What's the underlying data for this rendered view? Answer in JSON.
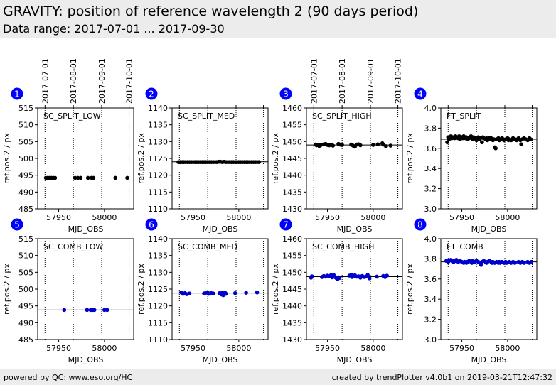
{
  "header": {
    "title": "GRAVITY: position of reference wavelength 2 (90 days period)",
    "subtitle": "Data range: 2017-07-01 ... 2017-09-30"
  },
  "footer": {
    "left": "powered by QC: www.eso.org/HC",
    "right": "created by trendPlotter v4.0b1 on 2019-03-21T12:47:32"
  },
  "date_axis": {
    "labels": [
      "2017-07-01",
      "2017-08-01",
      "2017-09-01",
      "2017-10-01"
    ],
    "mjd": [
      57935,
      57966,
      57997,
      58027
    ]
  },
  "colors": {
    "marker_black": "#000000",
    "marker_blue": "#0000cc",
    "badge": "#0000ff"
  },
  "chart_data": [
    {
      "type": "scatter",
      "badge": "1",
      "label": "SC_SPLIT_LOW",
      "xlabel": "MJD_OBS",
      "ylabel": "ref.pos.2 / px",
      "xlim": [
        57927,
        58032
      ],
      "ylim": [
        485,
        515
      ],
      "yticks": [
        485,
        490,
        495,
        500,
        505,
        510,
        515
      ],
      "xticks": [
        57950,
        58000
      ],
      "refline": 494.2,
      "color": "black",
      "points": [
        [
          57936,
          494.2
        ],
        [
          57938,
          494.2
        ],
        [
          57940,
          494.2
        ],
        [
          57942,
          494.2
        ],
        [
          57944,
          494.2
        ],
        [
          57946,
          494.2
        ],
        [
          57968,
          494.2
        ],
        [
          57971,
          494.2
        ],
        [
          57974,
          494.2
        ],
        [
          57982,
          494.2
        ],
        [
          57986,
          494.2
        ],
        [
          57988,
          494.2
        ],
        [
          58012,
          494.2
        ],
        [
          58025,
          494.2
        ]
      ]
    },
    {
      "type": "scatter",
      "badge": "2",
      "label": "SC_SPLIT_MED",
      "xlabel": "MJD_OBS",
      "ylabel": "ref.pos.2 / px",
      "xlim": [
        57927,
        58032
      ],
      "ylim": [
        1110,
        1140
      ],
      "yticks": [
        1110,
        1115,
        1120,
        1125,
        1130,
        1135,
        1140
      ],
      "xticks": [
        57950,
        58000
      ],
      "refline": 1124.0,
      "color": "black",
      "points": [
        [
          57934,
          1123.9
        ],
        [
          57936,
          1123.9
        ],
        [
          57938,
          1123.9
        ],
        [
          57940,
          1123.9
        ],
        [
          57942,
          1123.9
        ],
        [
          57944,
          1123.9
        ],
        [
          57946,
          1123.9
        ],
        [
          57948,
          1123.9
        ],
        [
          57950,
          1123.9
        ],
        [
          57952,
          1123.9
        ],
        [
          57954,
          1123.9
        ],
        [
          57956,
          1123.9
        ],
        [
          57958,
          1123.9
        ],
        [
          57960,
          1123.9
        ],
        [
          57962,
          1123.9
        ],
        [
          57964,
          1123.9
        ],
        [
          57966,
          1123.9
        ],
        [
          57968,
          1123.9
        ],
        [
          57970,
          1123.9
        ],
        [
          57972,
          1123.9
        ],
        [
          57974,
          1123.9
        ],
        [
          57976,
          1123.9
        ],
        [
          57978,
          1124.0
        ],
        [
          57980,
          1124.0
        ],
        [
          57982,
          1123.9
        ],
        [
          57984,
          1124.0
        ],
        [
          57986,
          1123.9
        ],
        [
          57988,
          1123.9
        ],
        [
          57990,
          1123.9
        ],
        [
          57992,
          1123.9
        ],
        [
          57994,
          1123.9
        ],
        [
          57996,
          1123.9
        ],
        [
          57998,
          1123.9
        ],
        [
          58000,
          1123.9
        ],
        [
          58002,
          1123.9
        ],
        [
          58004,
          1123.9
        ],
        [
          58006,
          1123.9
        ],
        [
          58008,
          1123.9
        ],
        [
          58010,
          1123.9
        ],
        [
          58012,
          1123.9
        ],
        [
          58014,
          1123.9
        ],
        [
          58016,
          1123.9
        ],
        [
          58018,
          1123.9
        ],
        [
          58020,
          1123.9
        ],
        [
          58022,
          1123.9
        ]
      ]
    },
    {
      "type": "scatter",
      "badge": "3",
      "label": "SC_SPLIT_HIGH",
      "xlabel": "MJD_OBS",
      "ylabel": "ref.pos.2 / px",
      "xlim": [
        57927,
        58032
      ],
      "ylim": [
        1430,
        1460
      ],
      "yticks": [
        1430,
        1435,
        1440,
        1445,
        1450,
        1455,
        1460
      ],
      "xticks": [
        57950,
        58000
      ],
      "refline": 1449.0,
      "color": "black",
      "points": [
        [
          57937,
          1449.1
        ],
        [
          57938,
          1448.9
        ],
        [
          57940,
          1449.0
        ],
        [
          57941,
          1448.7
        ],
        [
          57943,
          1449.0
        ],
        [
          57946,
          1449.2
        ],
        [
          57948,
          1449.3
        ],
        [
          57950,
          1449.0
        ],
        [
          57952,
          1448.9
        ],
        [
          57954,
          1449.1
        ],
        [
          57956,
          1448.8
        ],
        [
          57962,
          1449.3
        ],
        [
          57964,
          1449.1
        ],
        [
          57966,
          1449.0
        ],
        [
          57976,
          1449.1
        ],
        [
          57978,
          1448.8
        ],
        [
          57980,
          1448.5
        ],
        [
          57982,
          1449.1
        ],
        [
          57984,
          1449.2
        ],
        [
          57986,
          1448.9
        ],
        [
          58000,
          1449.0
        ],
        [
          58005,
          1449.2
        ],
        [
          58010,
          1449.5
        ],
        [
          58011,
          1449.1
        ],
        [
          58014,
          1448.6
        ],
        [
          58019,
          1448.8
        ]
      ]
    },
    {
      "type": "scatter",
      "badge": "4",
      "label": "FT_SPLIT",
      "xlabel": "MJD_OBS",
      "ylabel": "ref.pos.2 / px",
      "xlim": [
        57927,
        58032
      ],
      "ylim": [
        3.0,
        4.0
      ],
      "yticks": [
        3.0,
        3.2,
        3.4,
        3.6,
        3.8,
        4.0
      ],
      "xticks": [
        57950,
        58000
      ],
      "refline": 3.69,
      "color": "black",
      "points": [
        [
          57934,
          3.66
        ],
        [
          57935,
          3.71
        ],
        [
          57936,
          3.69
        ],
        [
          57938,
          3.72
        ],
        [
          57939,
          3.7
        ],
        [
          57940,
          3.71
        ],
        [
          57942,
          3.7
        ],
        [
          57943,
          3.72
        ],
        [
          57944,
          3.71
        ],
        [
          57946,
          3.7
        ],
        [
          57947,
          3.72
        ],
        [
          57948,
          3.69
        ],
        [
          57950,
          3.71
        ],
        [
          57951,
          3.7
        ],
        [
          57952,
          3.72
        ],
        [
          57954,
          3.7
        ],
        [
          57955,
          3.71
        ],
        [
          57956,
          3.69
        ],
        [
          57958,
          3.7
        ],
        [
          57959,
          3.71
        ],
        [
          57960,
          3.72
        ],
        [
          57962,
          3.69
        ],
        [
          57963,
          3.71
        ],
        [
          57964,
          3.7
        ],
        [
          57966,
          3.68
        ],
        [
          57968,
          3.71
        ],
        [
          57969,
          3.69
        ],
        [
          57970,
          3.7
        ],
        [
          57972,
          3.66
        ],
        [
          57973,
          3.71
        ],
        [
          57974,
          3.7
        ],
        [
          57976,
          3.69
        ],
        [
          57977,
          3.7
        ],
        [
          57978,
          3.68
        ],
        [
          57980,
          3.7
        ],
        [
          57981,
          3.69
        ],
        [
          57982,
          3.7
        ],
        [
          57984,
          3.68
        ],
        [
          57985,
          3.69
        ],
        [
          57986,
          3.61
        ],
        [
          57987,
          3.6
        ],
        [
          57988,
          3.69
        ],
        [
          57990,
          3.7
        ],
        [
          57991,
          3.68
        ],
        [
          57992,
          3.69
        ],
        [
          57994,
          3.7
        ],
        [
          57995,
          3.69
        ],
        [
          57996,
          3.68
        ],
        [
          57998,
          3.69
        ],
        [
          58000,
          3.7
        ],
        [
          58001,
          3.68
        ],
        [
          58002,
          3.69
        ],
        [
          58004,
          3.68
        ],
        [
          58006,
          3.7
        ],
        [
          58008,
          3.69
        ],
        [
          58010,
          3.68
        ],
        [
          58011,
          3.69
        ],
        [
          58012,
          3.7
        ],
        [
          58014,
          3.68
        ],
        [
          58015,
          3.64
        ],
        [
          58016,
          3.69
        ],
        [
          58018,
          3.7
        ],
        [
          58020,
          3.69
        ],
        [
          58022,
          3.68
        ],
        [
          58024,
          3.7
        ],
        [
          58025,
          3.69
        ]
      ]
    },
    {
      "type": "scatter",
      "badge": "5",
      "label": "SC_COMB_LOW",
      "xlabel": "MJD_OBS",
      "ylabel": "ref.pos.2 / px",
      "xlim": [
        57927,
        58032
      ],
      "ylim": [
        485,
        515
      ],
      "yticks": [
        485,
        490,
        495,
        500,
        505,
        510,
        515
      ],
      "xticks": [
        57950,
        58000
      ],
      "refline": 493.8,
      "color": "blue",
      "points": [
        [
          57956,
          493.8
        ],
        [
          57981,
          493.8
        ],
        [
          57985,
          493.8
        ],
        [
          57987,
          493.8
        ],
        [
          57989,
          493.8
        ],
        [
          58000,
          493.8
        ],
        [
          58003,
          493.8
        ]
      ]
    },
    {
      "type": "scatter",
      "badge": "6",
      "label": "SC_COMB_MED",
      "xlabel": "MJD_OBS",
      "ylabel": "ref.pos.2 / px",
      "xlim": [
        57927,
        58032
      ],
      "ylim": [
        1110,
        1140
      ],
      "yticks": [
        1110,
        1115,
        1120,
        1125,
        1130,
        1135,
        1140
      ],
      "xticks": [
        57950,
        58000
      ],
      "refline": 1123.8,
      "color": "blue",
      "points": [
        [
          57937,
          1124.0
        ],
        [
          57939,
          1123.6
        ],
        [
          57941,
          1123.8
        ],
        [
          57943,
          1123.5
        ],
        [
          57946,
          1123.7
        ],
        [
          57962,
          1123.7
        ],
        [
          57964,
          1123.9
        ],
        [
          57966,
          1124.0
        ],
        [
          57967,
          1123.6
        ],
        [
          57970,
          1123.8
        ],
        [
          57972,
          1123.7
        ],
        [
          57979,
          1123.8
        ],
        [
          57981,
          1123.4
        ],
        [
          57982,
          1124.0
        ],
        [
          57983,
          1123.2
        ],
        [
          57985,
          1123.9
        ],
        [
          57986,
          1123.6
        ],
        [
          57996,
          1123.8
        ],
        [
          58008,
          1123.9
        ],
        [
          58020,
          1124.0
        ]
      ]
    },
    {
      "type": "scatter",
      "badge": "7",
      "label": "SC_COMB_HIGH",
      "xlabel": "MJD_OBS",
      "ylabel": "ref.pos.2 / px",
      "xlim": [
        57927,
        58032
      ],
      "ylim": [
        1430,
        1460
      ],
      "yticks": [
        1430,
        1435,
        1440,
        1445,
        1450,
        1455,
        1460
      ],
      "xticks": [
        57950,
        58000
      ],
      "refline": 1448.7,
      "color": "blue",
      "points": [
        [
          57932,
          1448.4
        ],
        [
          57933,
          1448.8
        ],
        [
          57944,
          1448.6
        ],
        [
          57946,
          1448.9
        ],
        [
          57948,
          1448.7
        ],
        [
          57950,
          1449.0
        ],
        [
          57952,
          1448.8
        ],
        [
          57954,
          1449.2
        ],
        [
          57955,
          1448.5
        ],
        [
          57957,
          1449.1
        ],
        [
          57958,
          1448.6
        ],
        [
          57960,
          1448.2
        ],
        [
          57961,
          1448.0
        ],
        [
          57962,
          1448.5
        ],
        [
          57963,
          1448.3
        ],
        [
          57974,
          1449.0
        ],
        [
          57976,
          1449.2
        ],
        [
          57977,
          1448.6
        ],
        [
          57979,
          1448.9
        ],
        [
          57980,
          1449.1
        ],
        [
          57982,
          1448.7
        ],
        [
          57984,
          1448.8
        ],
        [
          57986,
          1448.4
        ],
        [
          57988,
          1448.9
        ],
        [
          57990,
          1448.6
        ],
        [
          57992,
          1448.7
        ],
        [
          57994,
          1449.2
        ],
        [
          57996,
          1448.2
        ],
        [
          58004,
          1448.7
        ],
        [
          58011,
          1448.9
        ],
        [
          58013,
          1448.6
        ],
        [
          58015,
          1449.0
        ]
      ]
    },
    {
      "type": "scatter",
      "badge": "8",
      "label": "FT_COMB",
      "xlabel": "MJD_OBS",
      "ylabel": "ref.pos.2 / px",
      "xlim": [
        57927,
        58032
      ],
      "ylim": [
        3.0,
        4.0
      ],
      "yticks": [
        3.0,
        3.2,
        3.4,
        3.6,
        3.8,
        4.0
      ],
      "xticks": [
        57950,
        58000
      ],
      "refline": 3.77,
      "color": "blue",
      "points": [
        [
          57933,
          3.78
        ],
        [
          57935,
          3.77
        ],
        [
          57936,
          3.78
        ],
        [
          57938,
          3.79
        ],
        [
          57940,
          3.78
        ],
        [
          57941,
          3.77
        ],
        [
          57943,
          3.78
        ],
        [
          57944,
          3.79
        ],
        [
          57946,
          3.77
        ],
        [
          57948,
          3.78
        ],
        [
          57950,
          3.77
        ],
        [
          57952,
          3.76
        ],
        [
          57953,
          3.77
        ],
        [
          57955,
          3.76
        ],
        [
          57956,
          3.77
        ],
        [
          57958,
          3.78
        ],
        [
          57960,
          3.77
        ],
        [
          57961,
          3.76
        ],
        [
          57962,
          3.78
        ],
        [
          57964,
          3.77
        ],
        [
          57966,
          3.78
        ],
        [
          57968,
          3.77
        ],
        [
          57970,
          3.76
        ],
        [
          57971,
          3.74
        ],
        [
          57972,
          3.77
        ],
        [
          57974,
          3.78
        ],
        [
          57976,
          3.77
        ],
        [
          57977,
          3.76
        ],
        [
          57978,
          3.77
        ],
        [
          57980,
          3.78
        ],
        [
          57982,
          3.77
        ],
        [
          57983,
          3.76
        ],
        [
          57984,
          3.77
        ],
        [
          57986,
          3.76
        ],
        [
          57988,
          3.77
        ],
        [
          57990,
          3.76
        ],
        [
          57991,
          3.77
        ],
        [
          57992,
          3.76
        ],
        [
          57994,
          3.77
        ],
        [
          57996,
          3.76
        ],
        [
          57998,
          3.77
        ],
        [
          57999,
          3.76
        ],
        [
          58002,
          3.77
        ],
        [
          58004,
          3.76
        ],
        [
          58006,
          3.77
        ],
        [
          58008,
          3.76
        ],
        [
          58012,
          3.77
        ],
        [
          58014,
          3.76
        ],
        [
          58016,
          3.77
        ],
        [
          58018,
          3.76
        ],
        [
          58022,
          3.77
        ],
        [
          58024,
          3.76
        ],
        [
          58026,
          3.77
        ]
      ]
    }
  ]
}
